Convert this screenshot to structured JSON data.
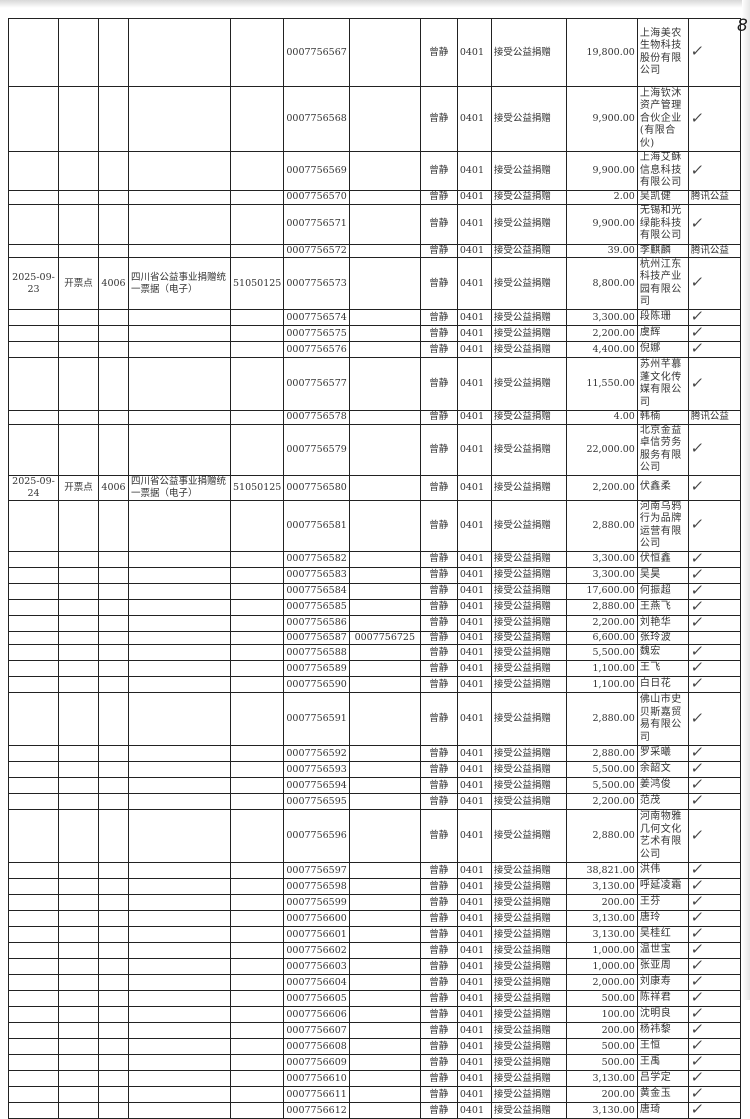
{
  "page_number": "8",
  "common": {
    "operator": "曾静",
    "code": "0401",
    "item": "接受公益捐赠"
  },
  "rows": [
    {
      "date": "",
      "point": "",
      "point_code": "",
      "bill_name": "",
      "bill_code": "",
      "no": "0007756567",
      "ref": "",
      "amount": "19,800.00",
      "donor": "上海美农生物科技股份有限公司",
      "note": "",
      "check": true
    },
    {
      "date": "",
      "point": "",
      "point_code": "",
      "bill_name": "",
      "bill_code": "",
      "no": "0007756568",
      "ref": "",
      "amount": "9,900.00",
      "donor": "上海钦沐资产管理合伙企业(有限合伙)",
      "note": "",
      "check": true
    },
    {
      "date": "",
      "point": "",
      "point_code": "",
      "bill_name": "",
      "bill_code": "",
      "no": "0007756569",
      "ref": "",
      "amount": "9,900.00",
      "donor": "上海艾稣信息科技有限公司",
      "note": "",
      "check": true
    },
    {
      "date": "",
      "point": "",
      "point_code": "",
      "bill_name": "",
      "bill_code": "",
      "no": "0007756570",
      "ref": "",
      "amount": "2.00",
      "donor": "吴凯健",
      "note": "腾讯公益",
      "check": false
    },
    {
      "date": "",
      "point": "",
      "point_code": "",
      "bill_name": "",
      "bill_code": "",
      "no": "0007756571",
      "ref": "",
      "amount": "9,900.00",
      "donor": "无锡和光绿能科技有限公司",
      "note": "",
      "check": true
    },
    {
      "date": "",
      "point": "",
      "point_code": "",
      "bill_name": "",
      "bill_code": "",
      "no": "0007756572",
      "ref": "",
      "amount": "39.00",
      "donor": "李麒麟",
      "note": "腾讯公益",
      "check": false
    },
    {
      "date": "2025-09-23",
      "point": "开票点",
      "point_code": "4006",
      "bill_name": "四川省公益事业捐赠统一票据（电子）",
      "bill_code": "51050125",
      "no": "0007756573",
      "ref": "",
      "amount": "8,800.00",
      "donor": "杭州江东科技产业园有限公司",
      "note": "",
      "check": true
    },
    {
      "date": "",
      "point": "",
      "point_code": "",
      "bill_name": "",
      "bill_code": "",
      "no": "0007756574",
      "ref": "",
      "amount": "3,300.00",
      "donor": "段陈珊",
      "note": "",
      "check": true
    },
    {
      "date": "",
      "point": "",
      "point_code": "",
      "bill_name": "",
      "bill_code": "",
      "no": "0007756575",
      "ref": "",
      "amount": "2,200.00",
      "donor": "虞辉",
      "note": "",
      "check": true
    },
    {
      "date": "",
      "point": "",
      "point_code": "",
      "bill_name": "",
      "bill_code": "",
      "no": "0007756576",
      "ref": "",
      "amount": "4,400.00",
      "donor": "倪娜",
      "note": "",
      "check": true
    },
    {
      "date": "",
      "point": "",
      "point_code": "",
      "bill_name": "",
      "bill_code": "",
      "no": "0007756577",
      "ref": "",
      "amount": "11,550.00",
      "donor": "苏州芊慕蓬文化传媒有限公司",
      "note": "",
      "check": true
    },
    {
      "date": "",
      "point": "",
      "point_code": "",
      "bill_name": "",
      "bill_code": "",
      "no": "0007756578",
      "ref": "",
      "amount": "4.00",
      "donor": "韩楠",
      "note": "腾讯公益",
      "check": false
    },
    {
      "date": "",
      "point": "",
      "point_code": "",
      "bill_name": "",
      "bill_code": "",
      "no": "0007756579",
      "ref": "",
      "amount": "22,000.00",
      "donor": "北京金益卓信劳务服务有限公司",
      "note": "",
      "check": true
    },
    {
      "date": "2025-09-24",
      "point": "开票点",
      "point_code": "4006",
      "bill_name": "四川省公益事业捐赠统一票据（电子）",
      "bill_code": "51050125",
      "no": "0007756580",
      "ref": "",
      "amount": "2,200.00",
      "donor": "伏鑫柔",
      "note": "",
      "check": true
    },
    {
      "date": "",
      "point": "",
      "point_code": "",
      "bill_name": "",
      "bill_code": "",
      "no": "0007756581",
      "ref": "",
      "amount": "2,880.00",
      "donor": "河南乌鸦行为品牌运营有限公司",
      "note": "",
      "check": true
    },
    {
      "date": "",
      "point": "",
      "point_code": "",
      "bill_name": "",
      "bill_code": "",
      "no": "0007756582",
      "ref": "",
      "amount": "3,300.00",
      "donor": "伏恒鑫",
      "note": "",
      "check": true
    },
    {
      "date": "",
      "point": "",
      "point_code": "",
      "bill_name": "",
      "bill_code": "",
      "no": "0007756583",
      "ref": "",
      "amount": "3,300.00",
      "donor": "吴昊",
      "note": "",
      "check": true
    },
    {
      "date": "",
      "point": "",
      "point_code": "",
      "bill_name": "",
      "bill_code": "",
      "no": "0007756584",
      "ref": "",
      "amount": "17,600.00",
      "donor": "何振超",
      "note": "",
      "check": true
    },
    {
      "date": "",
      "point": "",
      "point_code": "",
      "bill_name": "",
      "bill_code": "",
      "no": "0007756585",
      "ref": "",
      "amount": "2,880.00",
      "donor": "王燕飞",
      "note": "",
      "check": true
    },
    {
      "date": "",
      "point": "",
      "point_code": "",
      "bill_name": "",
      "bill_code": "",
      "no": "0007756586",
      "ref": "",
      "amount": "2,200.00",
      "donor": "刘艳华",
      "note": "",
      "check": true
    },
    {
      "date": "",
      "point": "",
      "point_code": "",
      "bill_name": "",
      "bill_code": "",
      "no": "0007756587",
      "ref": "0007756725",
      "amount": "6,600.00",
      "donor": "张玲波",
      "note": "",
      "check": false
    },
    {
      "date": "",
      "point": "",
      "point_code": "",
      "bill_name": "",
      "bill_code": "",
      "no": "0007756588",
      "ref": "",
      "amount": "5,500.00",
      "donor": "魏宏",
      "note": "",
      "check": true
    },
    {
      "date": "",
      "point": "",
      "point_code": "",
      "bill_name": "",
      "bill_code": "",
      "no": "0007756589",
      "ref": "",
      "amount": "1,100.00",
      "donor": "王飞",
      "note": "",
      "check": true
    },
    {
      "date": "",
      "point": "",
      "point_code": "",
      "bill_name": "",
      "bill_code": "",
      "no": "0007756590",
      "ref": "",
      "amount": "1,100.00",
      "donor": "白日花",
      "note": "",
      "check": true
    },
    {
      "date": "",
      "point": "",
      "point_code": "",
      "bill_name": "",
      "bill_code": "",
      "no": "0007756591",
      "ref": "",
      "amount": "2,880.00",
      "donor": "佛山市史贝斯嘉贸易有限公司",
      "note": "",
      "check": true
    },
    {
      "date": "",
      "point": "",
      "point_code": "",
      "bill_name": "",
      "bill_code": "",
      "no": "0007756592",
      "ref": "",
      "amount": "2,880.00",
      "donor": "罗采曦",
      "note": "",
      "check": true
    },
    {
      "date": "",
      "point": "",
      "point_code": "",
      "bill_name": "",
      "bill_code": "",
      "no": "0007756593",
      "ref": "",
      "amount": "5,500.00",
      "donor": "余韶文",
      "note": "",
      "check": true
    },
    {
      "date": "",
      "point": "",
      "point_code": "",
      "bill_name": "",
      "bill_code": "",
      "no": "0007756594",
      "ref": "",
      "amount": "5,500.00",
      "donor": "姜鸿俊",
      "note": "",
      "check": true
    },
    {
      "date": "",
      "point": "",
      "point_code": "",
      "bill_name": "",
      "bill_code": "",
      "no": "0007756595",
      "ref": "",
      "amount": "2,200.00",
      "donor": "范茂",
      "note": "",
      "check": true
    },
    {
      "date": "",
      "point": "",
      "point_code": "",
      "bill_name": "",
      "bill_code": "",
      "no": "0007756596",
      "ref": "",
      "amount": "2,880.00",
      "donor": "河南物雅几何文化艺术有限公司",
      "note": "",
      "check": true
    },
    {
      "date": "",
      "point": "",
      "point_code": "",
      "bill_name": "",
      "bill_code": "",
      "no": "0007756597",
      "ref": "",
      "amount": "38,821.00",
      "donor": "洪伟",
      "note": "",
      "check": true
    },
    {
      "date": "",
      "point": "",
      "point_code": "",
      "bill_name": "",
      "bill_code": "",
      "no": "0007756598",
      "ref": "",
      "amount": "3,130.00",
      "donor": "呼延凌霜",
      "note": "",
      "check": true
    },
    {
      "date": "",
      "point": "",
      "point_code": "",
      "bill_name": "",
      "bill_code": "",
      "no": "0007756599",
      "ref": "",
      "amount": "200.00",
      "donor": "王芬",
      "note": "",
      "check": true
    },
    {
      "date": "",
      "point": "",
      "point_code": "",
      "bill_name": "",
      "bill_code": "",
      "no": "0007756600",
      "ref": "",
      "amount": "3,130.00",
      "donor": "唐玲",
      "note": "",
      "check": true
    },
    {
      "date": "",
      "point": "",
      "point_code": "",
      "bill_name": "",
      "bill_code": "",
      "no": "0007756601",
      "ref": "",
      "amount": "3,130.00",
      "donor": "吴桂红",
      "note": "",
      "check": true
    },
    {
      "date": "",
      "point": "",
      "point_code": "",
      "bill_name": "",
      "bill_code": "",
      "no": "0007756602",
      "ref": "",
      "amount": "1,000.00",
      "donor": "温世宝",
      "note": "",
      "check": true
    },
    {
      "date": "",
      "point": "",
      "point_code": "",
      "bill_name": "",
      "bill_code": "",
      "no": "0007756603",
      "ref": "",
      "amount": "1,000.00",
      "donor": "张亚周",
      "note": "",
      "check": true
    },
    {
      "date": "",
      "point": "",
      "point_code": "",
      "bill_name": "",
      "bill_code": "",
      "no": "0007756604",
      "ref": "",
      "amount": "2,000.00",
      "donor": "刘康寿",
      "note": "",
      "check": true
    },
    {
      "date": "",
      "point": "",
      "point_code": "",
      "bill_name": "",
      "bill_code": "",
      "no": "0007756605",
      "ref": "",
      "amount": "500.00",
      "donor": "陈祥君",
      "note": "",
      "check": true
    },
    {
      "date": "",
      "point": "",
      "point_code": "",
      "bill_name": "",
      "bill_code": "",
      "no": "0007756606",
      "ref": "",
      "amount": "100.00",
      "donor": "沈明良",
      "note": "",
      "check": true
    },
    {
      "date": "",
      "point": "",
      "point_code": "",
      "bill_name": "",
      "bill_code": "",
      "no": "0007756607",
      "ref": "",
      "amount": "200.00",
      "donor": "杨祎黎",
      "note": "",
      "check": true
    },
    {
      "date": "",
      "point": "",
      "point_code": "",
      "bill_name": "",
      "bill_code": "",
      "no": "0007756608",
      "ref": "",
      "amount": "500.00",
      "donor": "王恒",
      "note": "",
      "check": true
    },
    {
      "date": "",
      "point": "",
      "point_code": "",
      "bill_name": "",
      "bill_code": "",
      "no": "0007756609",
      "ref": "",
      "amount": "500.00",
      "donor": "王禹",
      "note": "",
      "check": true
    },
    {
      "date": "",
      "point": "",
      "point_code": "",
      "bill_name": "",
      "bill_code": "",
      "no": "0007756610",
      "ref": "",
      "amount": "3,130.00",
      "donor": "吕学定",
      "note": "",
      "check": true
    },
    {
      "date": "",
      "point": "",
      "point_code": "",
      "bill_name": "",
      "bill_code": "",
      "no": "0007756611",
      "ref": "",
      "amount": "200.00",
      "donor": "黄金玉",
      "note": "",
      "check": true
    },
    {
      "date": "",
      "point": "",
      "point_code": "",
      "bill_name": "",
      "bill_code": "",
      "no": "0007756612",
      "ref": "",
      "amount": "3,130.00",
      "donor": "唐琦",
      "note": "",
      "check": true
    }
  ]
}
